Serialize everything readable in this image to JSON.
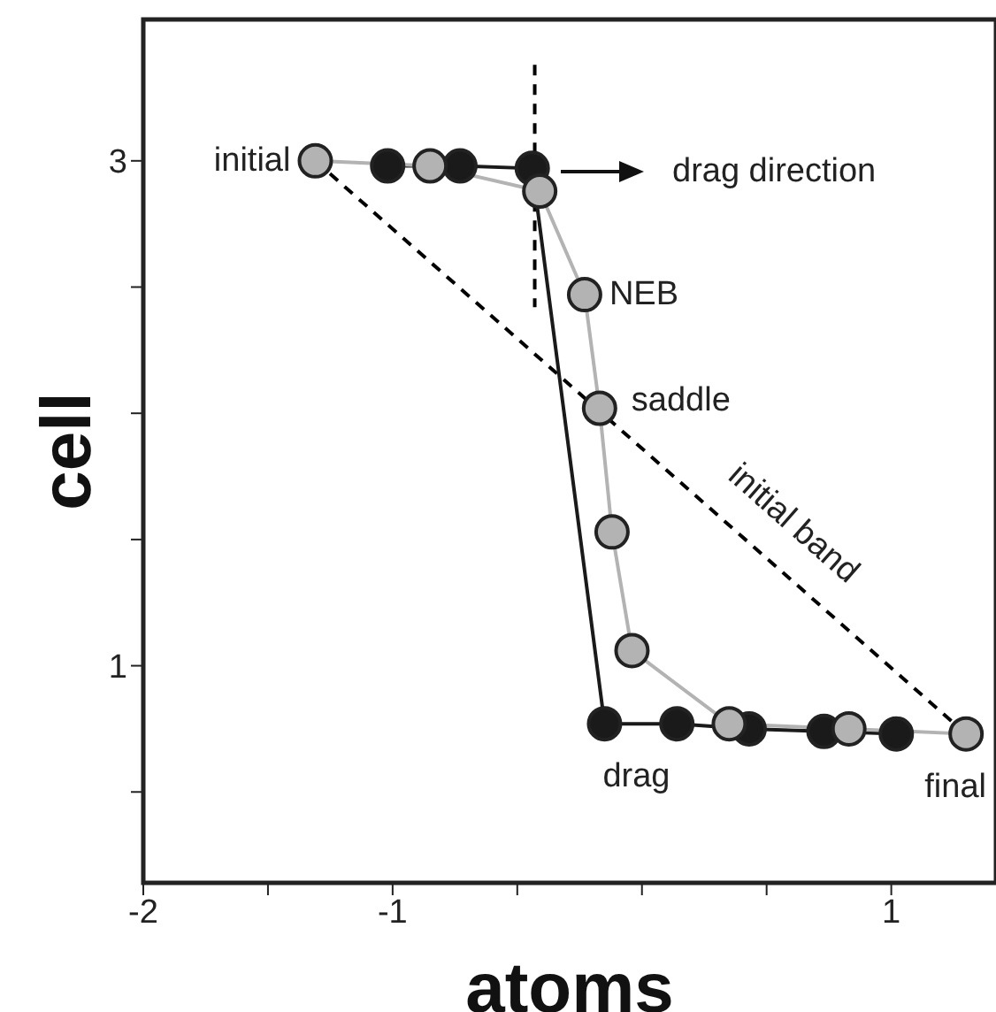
{
  "chart_data": {
    "type": "line",
    "xlabel": "atoms",
    "ylabel": "cell",
    "xlim": [
      -2,
      1.42
    ],
    "ylim": [
      0.14,
      3.56
    ],
    "xticks": [
      -2,
      {
        "value": -1.5,
        "label": null
      },
      -1,
      {
        "value": -0.5,
        "label": null
      },
      {
        "value": 0,
        "label": null
      },
      {
        "value": 0.5,
        "label": null
      },
      1
    ],
    "yticks": [
      {
        "value": 0.5,
        "label": null
      },
      1,
      {
        "value": 1.5,
        "label": null
      },
      {
        "value": 2,
        "label": null
      },
      {
        "value": 2.5,
        "label": null
      },
      3
    ],
    "grid": false,
    "series": [
      {
        "type": "line",
        "color": "#000000",
        "line_style": "dashed",
        "marker": "none",
        "x": [
          -1.31,
          1.3
        ],
        "values": [
          3.0,
          0.73
        ]
      },
      {
        "type": "line",
        "color": "#000000",
        "line_style": "dashed",
        "marker": "none",
        "x": [
          -0.43,
          -0.43
        ],
        "values": [
          3.38,
          2.42
        ]
      },
      {
        "type": "line",
        "color": "#1a1a1a",
        "line_style": "solid",
        "marker": "circle",
        "x": [
          -1.02,
          -0.73,
          -0.44,
          -0.15,
          0.14,
          0.43,
          0.73,
          1.02
        ],
        "values": [
          2.98,
          2.98,
          2.97,
          0.77,
          0.77,
          0.75,
          0.74,
          0.73
        ]
      },
      {
        "type": "line",
        "color": "#b3b3b3",
        "line_style": "solid",
        "marker": "circle",
        "x": [
          -1.31,
          -0.85,
          -0.41,
          -0.23,
          -0.17,
          -0.12,
          -0.04,
          0.35,
          0.83,
          1.3
        ],
        "values": [
          3.0,
          2.98,
          2.88,
          2.47,
          2.02,
          1.53,
          1.06,
          0.77,
          0.75,
          0.73
        ]
      }
    ],
    "annotations": [
      {
        "text": "initial",
        "x": -1.31,
        "y": 3.0
      },
      "drag direction",
      {
        "text": "NEB",
        "x": -0.23,
        "y": 2.47
      },
      {
        "text": "saddle",
        "x": -0.17,
        "y": 2.02
      },
      {
        "text": "initial band",
        "x": 0.49,
        "y": 1.43
      },
      {
        "text": "drag",
        "x": -0.15,
        "y": 0.77
      },
      {
        "text": "final",
        "x": 1.3,
        "y": 0.73
      }
    ]
  }
}
